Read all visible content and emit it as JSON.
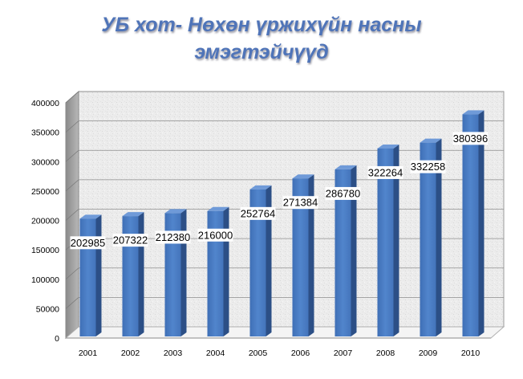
{
  "chart_data": {
    "type": "bar",
    "title_lines": [
      "УБ хот- Нөхөн үржихүйн насны",
      "эмэгтэйчүүд"
    ],
    "categories": [
      "2001",
      "2002",
      "2003",
      "2004",
      "2005",
      "2006",
      "2007",
      "2008",
      "2009",
      "2010"
    ],
    "values": [
      202985,
      207322,
      212380,
      216000,
      252764,
      271384,
      286780,
      322264,
      332258,
      380396
    ],
    "data_labels": [
      "202985",
      "207322",
      "212380",
      "216000",
      "252764",
      "271384",
      "286780",
      "322264",
      "332258",
      "380396"
    ],
    "y_ticks": [
      0,
      50000,
      100000,
      150000,
      200000,
      250000,
      300000,
      350000,
      400000
    ],
    "y_tick_labels": [
      "0",
      "50000",
      "100000",
      "150000",
      "200000",
      "250000",
      "300000",
      "350000",
      "400000"
    ],
    "ylim": [
      0,
      400000
    ],
    "xlabel": "",
    "ylabel": "",
    "grid": true,
    "legend": "none",
    "style": "3d-column",
    "colors": {
      "bar_front": "#4a7cc4",
      "bar_side": "#2c4f86",
      "bar_top": "#6f9ad8",
      "title": "#4f74b8",
      "wall": "#ebebeb",
      "side_wall": "#9a9a9a",
      "grid": "#8c8c8c"
    }
  }
}
